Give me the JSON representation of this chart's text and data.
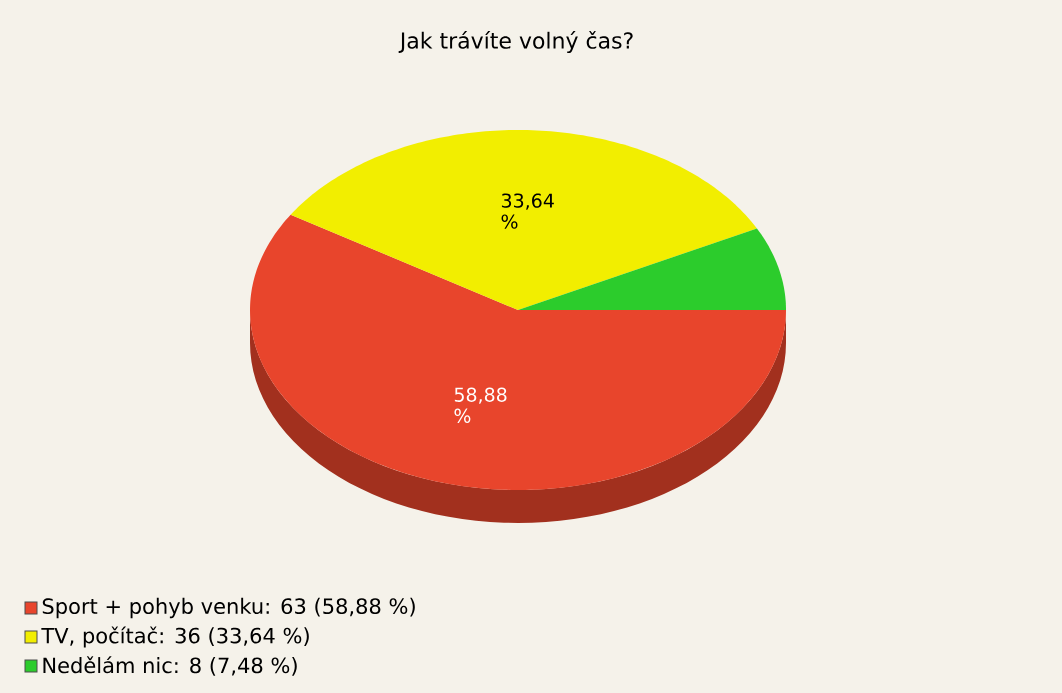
{
  "chart_data": {
    "type": "pie",
    "title": "Jak trávíte volný čas?",
    "categories": [
      "Sport + pohyb venku: 63 (58,88 %)",
      "TV, počítač: 36 (33,64 %)",
      "Nedělám nic: 8 (7,48 %)"
    ],
    "values": [
      58.88,
      33.64,
      7.48
    ],
    "colors": [
      "#e8452c",
      "#f2ee00",
      "#2ccc2c"
    ],
    "value_labels": [
      "58,88 %",
      "33,64 %",
      null
    ],
    "legend": "bottom left"
  }
}
